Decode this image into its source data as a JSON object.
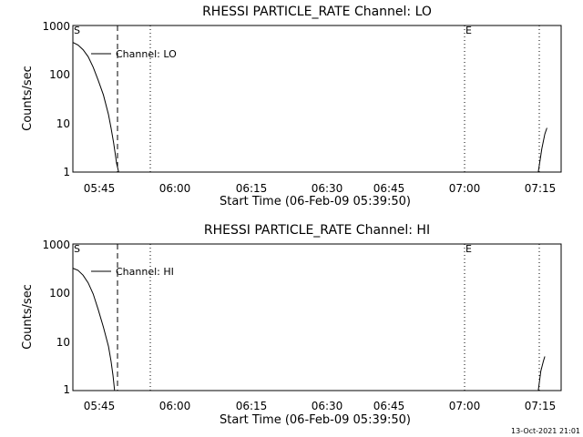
{
  "chart_data": [
    {
      "type": "line",
      "title": "RHESSI PARTICLE_RATE Channel: LO",
      "xlabel": "Start Time (06-Feb-09 05:39:50)",
      "ylabel": "Counts/sec",
      "yscale": "log",
      "ylim": [
        1,
        1000
      ],
      "xlim_minutes": [
        0,
        96
      ],
      "xticks": [
        "05:45",
        "06:00",
        "06:15",
        "06:30",
        "06:45",
        "07:00",
        "07:15"
      ],
      "yticks": [
        "1",
        "10",
        "100",
        "1000"
      ],
      "grid": false,
      "legend": {
        "position": "top-left",
        "entries": [
          "Channel: LO"
        ]
      },
      "markers": {
        "start": "S",
        "end": "E"
      },
      "series": [
        {
          "name": "Channel: LO",
          "segments": [
            {
              "x": [
                0,
                1,
                2,
                3,
                4,
                5,
                6,
                7,
                7.5,
                8,
                8.3,
                8.6,
                9
              ],
              "y": [
                450,
                400,
                320,
                230,
                140,
                75,
                38,
                15,
                8,
                4,
                2.5,
                1.5,
                1
              ]
            },
            {
              "x": [
                91.5,
                92.2,
                92.8,
                93.2
              ],
              "y": [
                1,
                3,
                6,
                8
              ]
            }
          ]
        }
      ]
    },
    {
      "type": "line",
      "title": "RHESSI PARTICLE_RATE Channel: HI",
      "xlabel": "Start Time (06-Feb-09 05:39:50)",
      "ylabel": "Counts/sec",
      "yscale": "log",
      "ylim": [
        1,
        1000
      ],
      "xlim_minutes": [
        0,
        96
      ],
      "xticks": [
        "05:45",
        "06:00",
        "06:15",
        "06:30",
        "06:45",
        "07:00",
        "07:15"
      ],
      "yticks": [
        "1",
        "10",
        "100",
        "1000"
      ],
      "grid": false,
      "legend": {
        "position": "top-left",
        "entries": [
          "Channel: HI"
        ]
      },
      "markers": {
        "start": "S",
        "end": "E"
      },
      "series": [
        {
          "name": "Channel: HI",
          "segments": [
            {
              "x": [
                0,
                1,
                2,
                3,
                4,
                5,
                6,
                7,
                7.5,
                7.9,
                8.2
              ],
              "y": [
                320,
                290,
                230,
                160,
                95,
                45,
                20,
                8,
                4,
                2,
                1
              ]
            },
            {
              "x": [
                91.5,
                92.0,
                92.5,
                92.8
              ],
              "y": [
                1,
                2.5,
                4,
                5
              ]
            }
          ]
        }
      ]
    }
  ],
  "footer": {
    "timestamp": "13-Oct-2021 21:01"
  }
}
